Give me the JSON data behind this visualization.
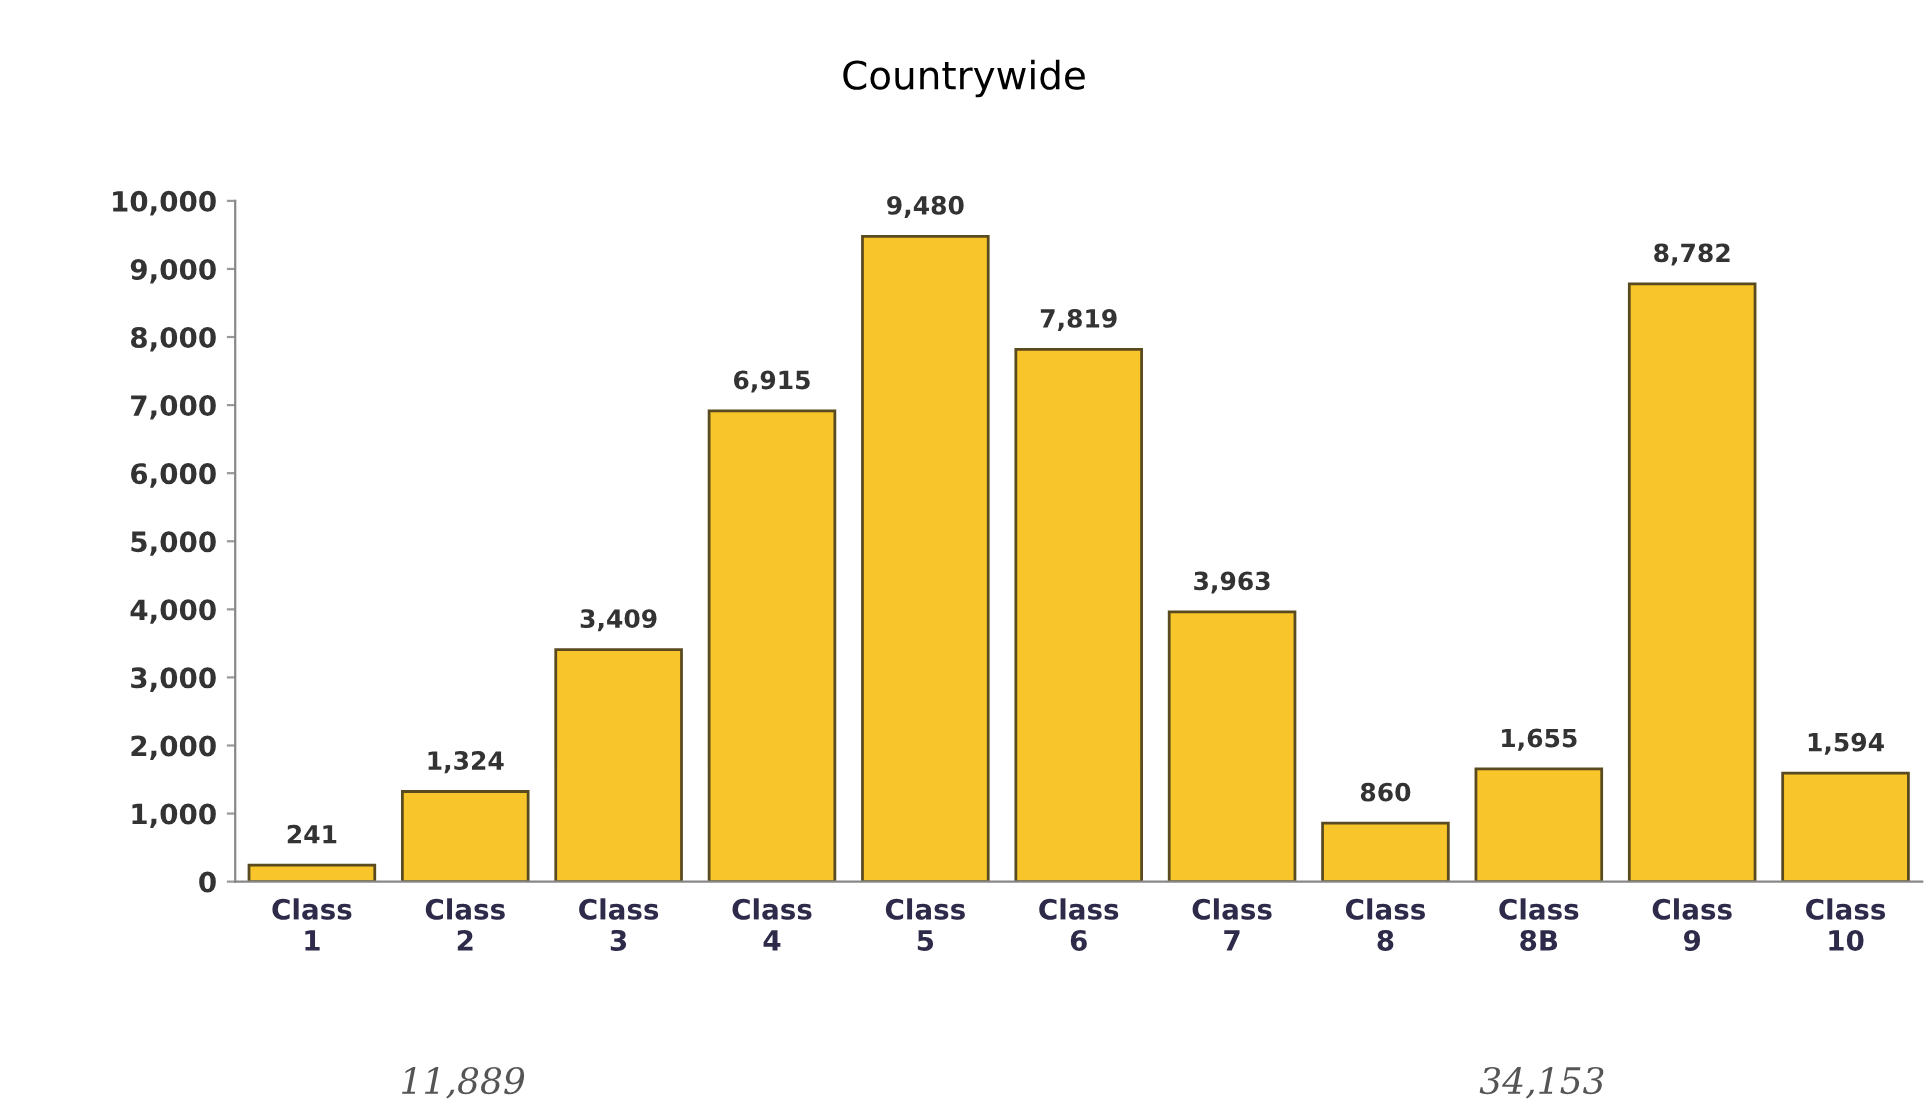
{
  "chart_data": {
    "type": "bar",
    "title": "Countrywide",
    "categories": [
      "Class\n1",
      "Class\n2",
      "Class\n3",
      "Class\n4",
      "Class\n5",
      "Class\n6",
      "Class\n7",
      "Class\n8",
      "Class\n8B",
      "Class\n9",
      "Class\n10"
    ],
    "values": [
      241,
      1324,
      3409,
      6915,
      9480,
      7819,
      3963,
      860,
      1655,
      8782,
      1594
    ],
    "value_labels": [
      "241",
      "1,324",
      "3,409",
      "6,915",
      "9,480",
      "7,819",
      "3,963",
      "860",
      "1,655",
      "8,782",
      "1,594"
    ],
    "color": "#f8c52a",
    "ylim": [
      0,
      10000
    ],
    "yticks": [
      {
        "value": 0,
        "label": "0"
      },
      {
        "value": 1000,
        "label": "1,000"
      },
      {
        "value": 2000,
        "label": "2,000"
      },
      {
        "value": 3000,
        "label": "3,000"
      },
      {
        "value": 4000,
        "label": "4,000"
      },
      {
        "value": 5000,
        "label": "5,000"
      },
      {
        "value": 6000,
        "label": "6,000"
      },
      {
        "value": 7000,
        "label": "7,000"
      },
      {
        "value": 8000,
        "label": "8,000"
      },
      {
        "value": 9000,
        "label": "9,000"
      },
      {
        "value": 10000,
        "label": "10,000"
      }
    ],
    "grid": false,
    "annotations": [
      "11,889",
      "34,153"
    ]
  }
}
